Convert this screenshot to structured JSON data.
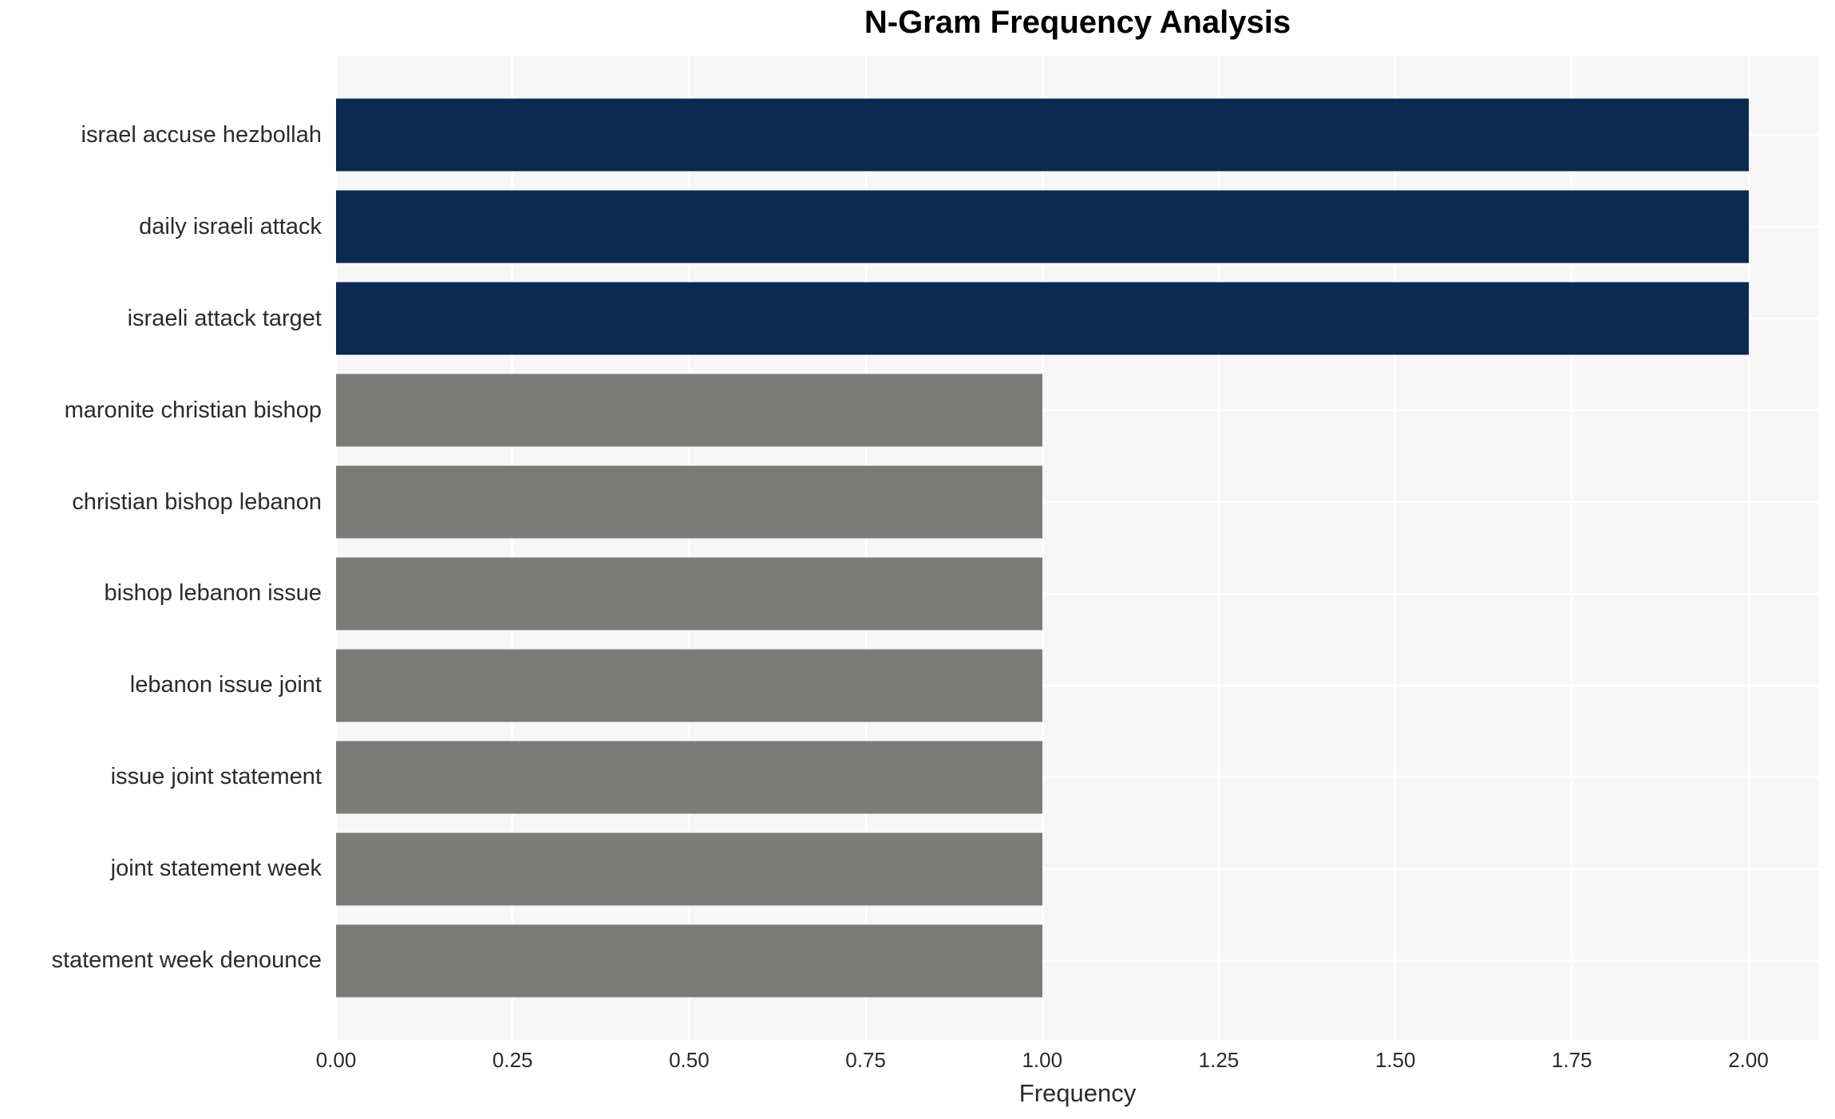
{
  "palette": {
    "highlight": "#0a2a52",
    "default": "#7b7b77",
    "plot_background": "#f7f7f7",
    "gridline": "#ffffff",
    "text": "#2b2b2b",
    "title_text": "#000000"
  },
  "chart_data": {
    "type": "bar",
    "orientation": "horizontal",
    "title": "N-Gram Frequency Analysis",
    "xlabel": "Frequency",
    "ylabel": "",
    "categories": [
      "israel accuse hezbollah",
      "daily israeli attack",
      "israeli attack target",
      "maronite christian bishop",
      "christian bishop lebanon",
      "bishop lebanon issue",
      "lebanon issue joint",
      "issue joint statement",
      "joint statement week",
      "statement week denounce"
    ],
    "values": [
      2,
      2,
      2,
      1,
      1,
      1,
      1,
      1,
      1,
      1
    ],
    "bar_colors": [
      "#0a2a52",
      "#0a2a52",
      "#0a2a52",
      "#7b7b77",
      "#7b7b77",
      "#7b7b77",
      "#7b7b77",
      "#7b7b77",
      "#7b7b77",
      "#7b7b77"
    ],
    "xlim": [
      0,
      2.1
    ],
    "xticks": [
      "0.00",
      "0.25",
      "0.50",
      "0.75",
      "1.00",
      "1.25",
      "1.50",
      "1.75",
      "2.00"
    ],
    "xtick_values": [
      0,
      0.25,
      0.5,
      0.75,
      1.0,
      1.25,
      1.5,
      1.75,
      2.0
    ],
    "grid": true,
    "legend": false
  }
}
